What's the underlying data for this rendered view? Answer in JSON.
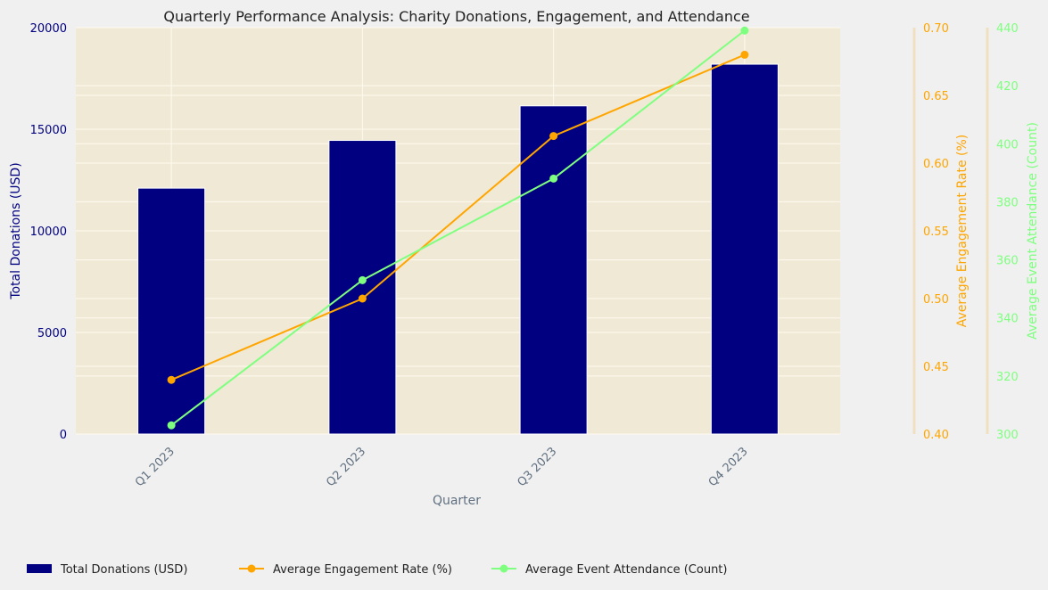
{
  "chart_data": {
    "type": "bar",
    "title": "Quarterly Performance Analysis: Charity Donations, Engagement, and Attendance",
    "xlabel": "Quarter",
    "categories": [
      "Q1 2023",
      "Q2 2023",
      "Q3 2023",
      "Q4 2023"
    ],
    "series": [
      {
        "name": "Total Donations (USD)",
        "type": "bar",
        "axis": "left",
        "values": [
          12100,
          14450,
          16150,
          18200
        ],
        "color": "#000080"
      },
      {
        "name": "Average Engagement Rate (%)",
        "type": "line",
        "axis": "right1",
        "values": [
          0.44,
          0.5,
          0.62,
          0.68
        ],
        "color": "#ffa500"
      },
      {
        "name": "Average Event Attendance (Count)",
        "type": "line",
        "axis": "right2",
        "values": [
          303,
          353,
          388,
          439
        ],
        "color": "#7fff7f"
      }
    ],
    "axes": {
      "left": {
        "label": "Total Donations (USD)",
        "ylim": [
          0,
          20000
        ],
        "ticks": [
          "0",
          "5000",
          "10000",
          "15000",
          "20000"
        ],
        "color": "#000080"
      },
      "right1": {
        "label": "Average Engagement Rate (%)",
        "ylim": [
          0.4,
          0.7
        ],
        "ticks": [
          "0.40",
          "0.45",
          "0.50",
          "0.55",
          "0.60",
          "0.65",
          "0.70"
        ],
        "color": "#ffa500"
      },
      "right2": {
        "label": "Average Event Attendance (Count)",
        "ylim": [
          300,
          440
        ],
        "ticks": [
          "300",
          "320",
          "340",
          "360",
          "380",
          "400",
          "420",
          "440"
        ],
        "color": "#7fff7f"
      }
    },
    "grid": true,
    "legend": "bottom-left",
    "colors": {
      "figure_bg": "#f0f0f0",
      "plot_bg": "#f0e9d6",
      "grid": "#fffaf0",
      "tick_text": "#607080"
    }
  }
}
